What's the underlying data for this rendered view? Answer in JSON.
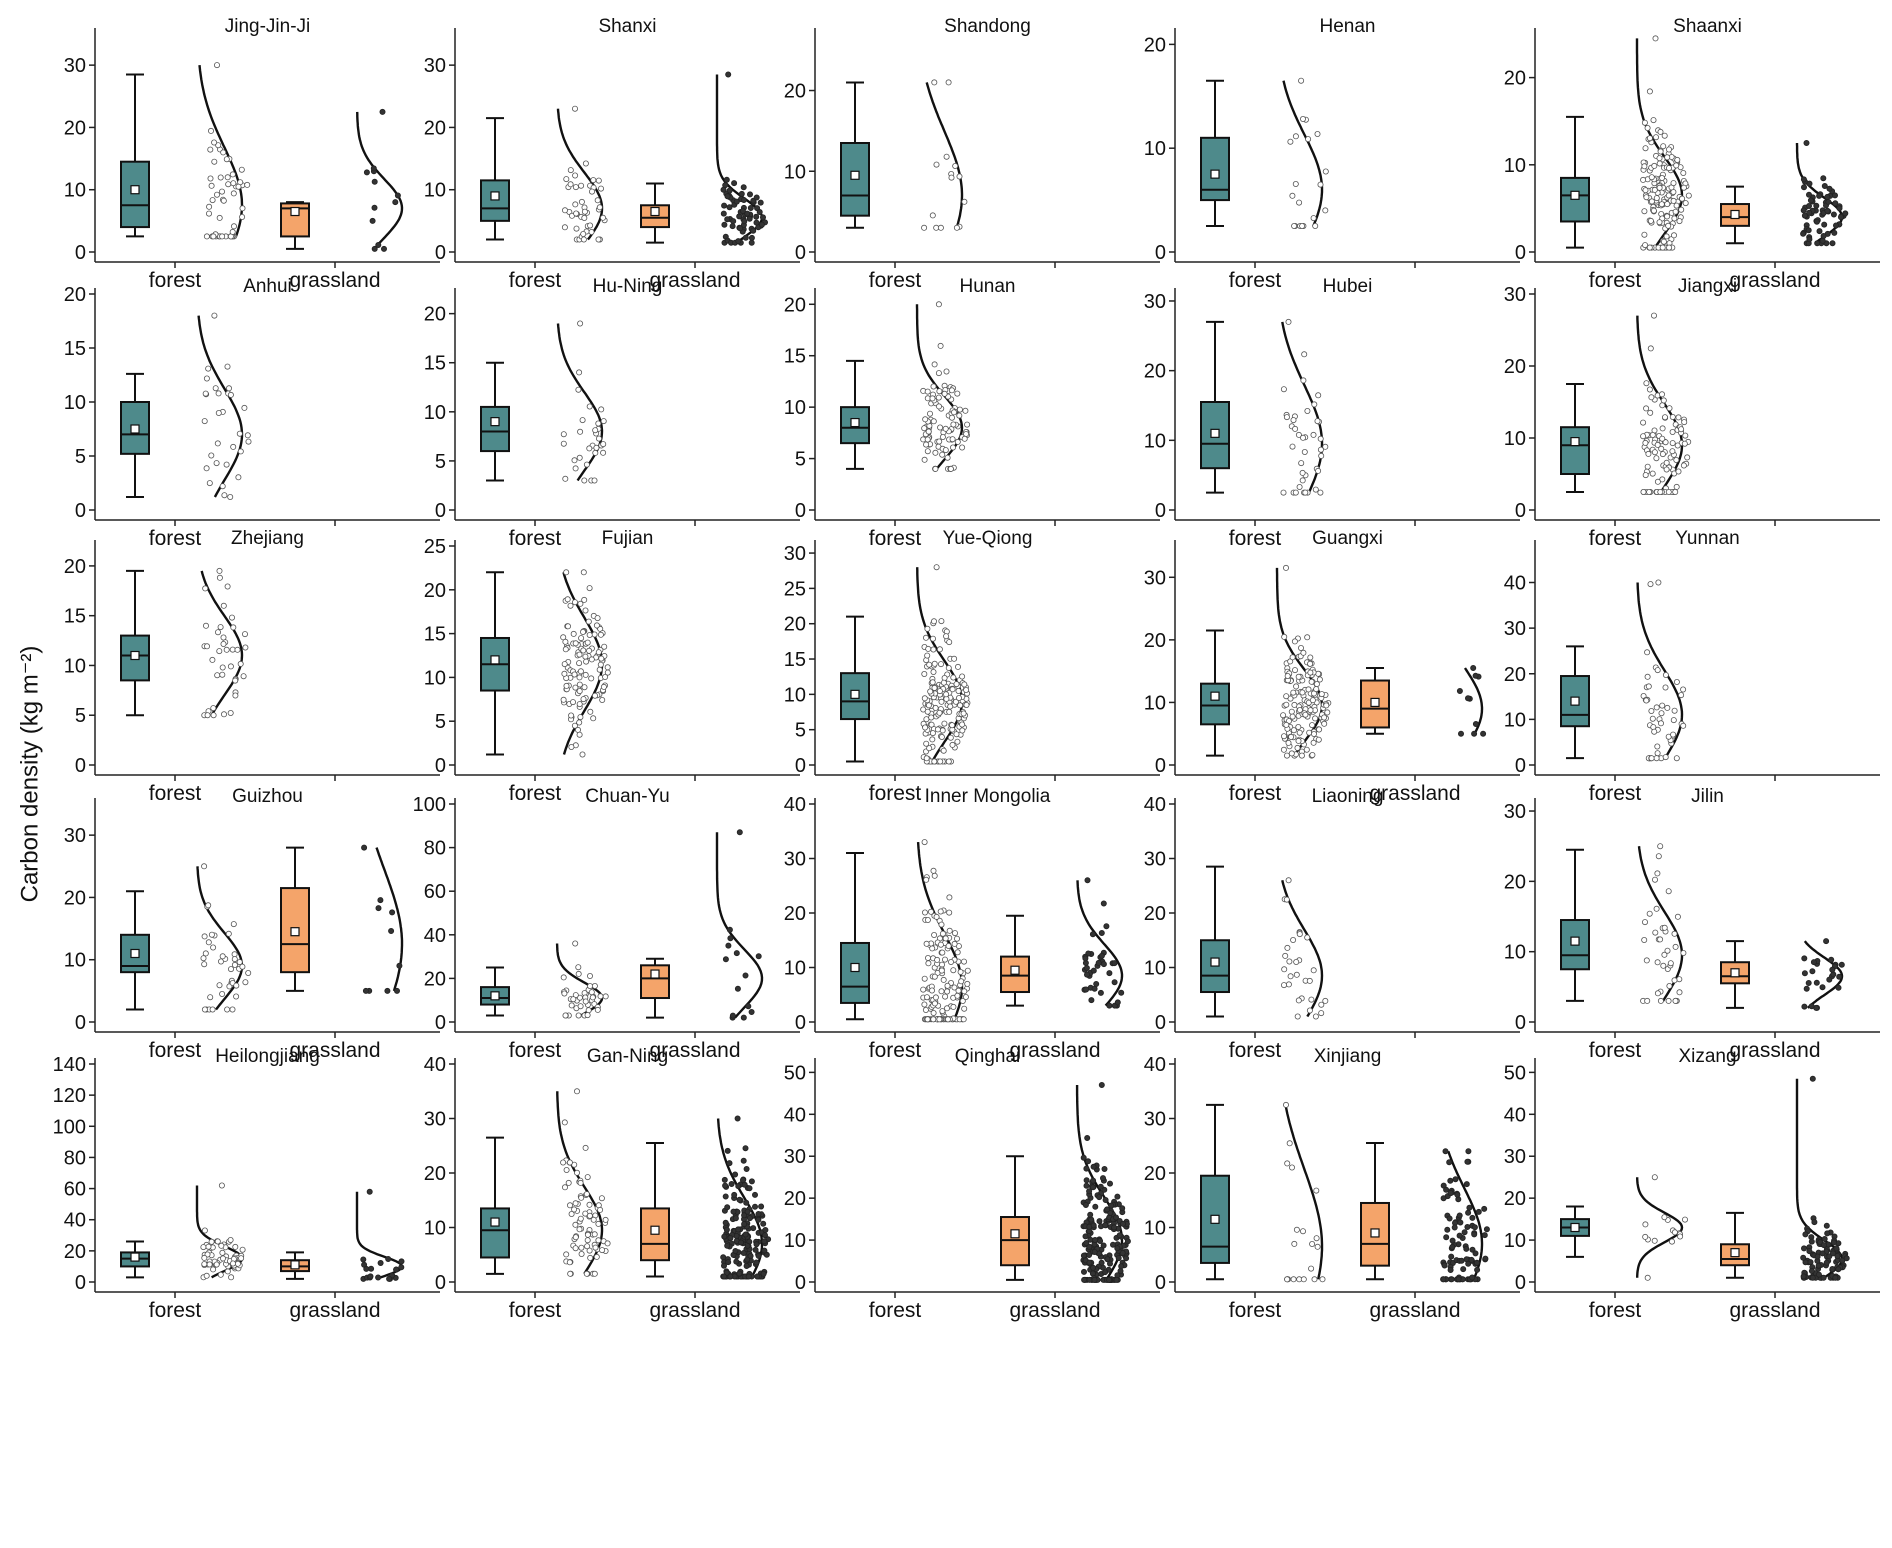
{
  "figure": {
    "ylabel": "Carbon density (kg m⁻²)",
    "colors": {
      "forest": "#4e8a8b",
      "grassland": "#f4a46a",
      "line": "#000000",
      "forest_point": "#ffffff",
      "grassland_point": "#333333"
    }
  },
  "chart_data": [
    {
      "type": "box",
      "title": "Jing-Jin-Ji",
      "ylim": [
        0,
        35
      ],
      "yticks": [
        0,
        10,
        20,
        30
      ],
      "categories": [
        "forest",
        "grassland"
      ],
      "series": [
        {
          "name": "forest",
          "min": 2.5,
          "q1": 4,
          "median": 7.5,
          "q3": 14.5,
          "max": 28.5,
          "mean": 10,
          "n": 50,
          "xn": 2.5,
          "xx": 30
        },
        {
          "name": "grassland",
          "min": 0.5,
          "q1": 2.5,
          "median": 7,
          "q3": 7.8,
          "max": 8,
          "mean": 6.5,
          "n": 12,
          "xn": 0.5,
          "xx": 22.5
        }
      ]
    },
    {
      "type": "box",
      "title": "Shanxi",
      "ylim": [
        0,
        35
      ],
      "yticks": [
        0,
        10,
        20,
        30
      ],
      "categories": [
        "forest",
        "grassland"
      ],
      "series": [
        {
          "name": "forest",
          "min": 2,
          "q1": 5,
          "median": 7,
          "q3": 11.5,
          "max": 21.5,
          "mean": 9,
          "n": 45,
          "xn": 2,
          "xx": 23
        },
        {
          "name": "grassland",
          "min": 1.5,
          "q1": 4,
          "median": 5.5,
          "q3": 7.5,
          "max": 11,
          "mean": 6.5,
          "n": 70,
          "xn": 1.5,
          "xx": 28.5
        }
      ]
    },
    {
      "type": "box",
      "title": "Shandong",
      "ylim": [
        0,
        27
      ],
      "yticks": [
        0,
        10,
        20
      ],
      "categories": [
        "forest"
      ],
      "series": [
        {
          "name": "forest",
          "min": 3,
          "q1": 4.5,
          "median": 7,
          "q3": 13.5,
          "max": 21,
          "mean": 9.5,
          "n": 15,
          "xn": 3,
          "xx": 21
        }
      ]
    },
    {
      "type": "box",
      "title": "Henan",
      "ylim": [
        0,
        21
      ],
      "yticks": [
        0,
        10,
        20
      ],
      "categories": [
        "forest"
      ],
      "series": [
        {
          "name": "forest",
          "min": 2.5,
          "q1": 5,
          "median": 6,
          "q3": 11,
          "max": 16.5,
          "mean": 7.5,
          "n": 20,
          "xn": 2.5,
          "xx": 16.5
        }
      ]
    },
    {
      "type": "box",
      "title": "Shaanxi",
      "ylim": [
        0,
        25
      ],
      "yticks": [
        0,
        10,
        20
      ],
      "categories": [
        "forest",
        "grassland"
      ],
      "series": [
        {
          "name": "forest",
          "min": 0.5,
          "q1": 3.5,
          "median": 6.5,
          "q3": 8.5,
          "max": 15.5,
          "mean": 6.5,
          "n": 160,
          "xn": 0.5,
          "xx": 24.5
        },
        {
          "name": "grassland",
          "min": 1,
          "q1": 3,
          "median": 4,
          "q3": 5.5,
          "max": 7.5,
          "mean": 4.3,
          "n": 70,
          "xn": 1,
          "xx": 12.5
        }
      ]
    },
    {
      "type": "box",
      "title": "Anhui",
      "ylim": [
        0,
        20
      ],
      "yticks": [
        0,
        5,
        10,
        15,
        20
      ],
      "categories": [
        "forest"
      ],
      "series": [
        {
          "name": "forest",
          "min": 1.2,
          "q1": 5.2,
          "median": 7,
          "q3": 10,
          "max": 12.6,
          "mean": 7.5,
          "n": 30,
          "xn": 1.2,
          "xx": 18
        }
      ]
    },
    {
      "type": "box",
      "title": "Hu-Ning",
      "ylim": [
        0,
        22
      ],
      "yticks": [
        0,
        5,
        10,
        15,
        20
      ],
      "categories": [
        "forest"
      ],
      "series": [
        {
          "name": "forest",
          "min": 3,
          "q1": 6,
          "median": 8,
          "q3": 10.5,
          "max": 15,
          "mean": 9,
          "n": 30,
          "xn": 3,
          "xx": 19
        }
      ]
    },
    {
      "type": "box",
      "title": "Hunan",
      "ylim": [
        0,
        21
      ],
      "yticks": [
        0,
        5,
        10,
        15,
        20
      ],
      "categories": [
        "forest"
      ],
      "series": [
        {
          "name": "forest",
          "min": 4,
          "q1": 6.5,
          "median": 8,
          "q3": 10,
          "max": 14.5,
          "mean": 8.5,
          "n": 100,
          "xn": 4,
          "xx": 20
        }
      ]
    },
    {
      "type": "box",
      "title": "Hubei",
      "ylim": [
        0,
        31
      ],
      "yticks": [
        0,
        10,
        20,
        30
      ],
      "categories": [
        "forest"
      ],
      "series": [
        {
          "name": "forest",
          "min": 2.5,
          "q1": 6,
          "median": 9.5,
          "q3": 15.5,
          "max": 27,
          "mean": 11,
          "n": 40,
          "xn": 2.5,
          "xx": 27
        }
      ]
    },
    {
      "type": "box",
      "title": "Jiangxi",
      "ylim": [
        0,
        30
      ],
      "yticks": [
        0,
        10,
        20,
        30
      ],
      "categories": [
        "forest"
      ],
      "series": [
        {
          "name": "forest",
          "min": 2.5,
          "q1": 5,
          "median": 9,
          "q3": 11.5,
          "max": 17.5,
          "mean": 9.5,
          "n": 100,
          "xn": 2.5,
          "xx": 27
        }
      ]
    },
    {
      "type": "box",
      "title": "Zhejiang",
      "ylim": [
        0,
        22
      ],
      "yticks": [
        0,
        5,
        10,
        15,
        20
      ],
      "categories": [
        "forest"
      ],
      "series": [
        {
          "name": "forest",
          "min": 5,
          "q1": 8.5,
          "median": 11,
          "q3": 13,
          "max": 19.5,
          "mean": 11,
          "n": 40,
          "xn": 5,
          "xx": 19.5
        }
      ]
    },
    {
      "type": "box",
      "title": "Fujian",
      "ylim": [
        0,
        25
      ],
      "yticks": [
        0,
        5,
        10,
        15,
        20,
        25
      ],
      "categories": [
        "forest"
      ],
      "series": [
        {
          "name": "forest",
          "min": 1.2,
          "q1": 8.5,
          "median": 11.5,
          "q3": 14.5,
          "max": 22,
          "mean": 12,
          "n": 120,
          "xn": 1.2,
          "xx": 22
        }
      ]
    },
    {
      "type": "box",
      "title": "Yue-Qiong",
      "ylim": [
        0,
        31
      ],
      "yticks": [
        0,
        5,
        10,
        15,
        20,
        25,
        30
      ],
      "categories": [
        "forest"
      ],
      "series": [
        {
          "name": "forest",
          "min": 0.5,
          "q1": 6.5,
          "median": 9,
          "q3": 13,
          "max": 21,
          "mean": 10,
          "n": 180,
          "xn": 0.5,
          "xx": 28
        }
      ]
    },
    {
      "type": "box",
      "title": "Guangxi",
      "ylim": [
        0,
        35
      ],
      "yticks": [
        0,
        10,
        20,
        30
      ],
      "categories": [
        "forest",
        "grassland"
      ],
      "series": [
        {
          "name": "forest",
          "min": 1.5,
          "q1": 6.5,
          "median": 9.5,
          "q3": 13,
          "max": 21.5,
          "mean": 11,
          "n": 160,
          "xn": 1.5,
          "xx": 31.5
        },
        {
          "name": "grassland",
          "min": 5,
          "q1": 6,
          "median": 9,
          "q3": 13.5,
          "max": 15.5,
          "mean": 10,
          "n": 10,
          "xn": 5,
          "xx": 15.5
        }
      ]
    },
    {
      "type": "box",
      "title": "Yunnan",
      "ylim": [
        0,
        48
      ],
      "yticks": [
        0,
        10,
        20,
        30,
        40
      ],
      "categories": [
        "forest"
      ],
      "series": [
        {
          "name": "forest",
          "min": 1.5,
          "q1": 8.5,
          "median": 11,
          "q3": 19.5,
          "max": 26,
          "mean": 14,
          "n": 50,
          "xn": 1.5,
          "xx": 40
        }
      ]
    },
    {
      "type": "box",
      "title": "Guizhou",
      "ylim": [
        0,
        35
      ],
      "yticks": [
        0,
        10,
        20,
        30
      ],
      "categories": [
        "forest",
        "grassland"
      ],
      "series": [
        {
          "name": "forest",
          "min": 2,
          "q1": 8,
          "median": 9,
          "q3": 14,
          "max": 21,
          "mean": 11,
          "n": 40,
          "xn": 2,
          "xx": 25
        },
        {
          "name": "grassland",
          "min": 5,
          "q1": 8,
          "median": 12.5,
          "q3": 21.5,
          "max": 28,
          "mean": 14.5,
          "n": 10,
          "xn": 5,
          "xx": 28
        }
      ]
    },
    {
      "type": "box",
      "title": "Chuan-Yu",
      "ylim": [
        0,
        100
      ],
      "yticks": [
        0,
        20,
        40,
        60,
        80,
        100
      ],
      "categories": [
        "forest",
        "grassland"
      ],
      "series": [
        {
          "name": "forest",
          "min": 3,
          "q1": 8,
          "median": 11,
          "q3": 16,
          "max": 25,
          "mean": 12,
          "n": 40,
          "xn": 3,
          "xx": 36
        },
        {
          "name": "grassland",
          "min": 2,
          "q1": 11,
          "median": 20,
          "q3": 26,
          "max": 29,
          "mean": 22,
          "n": 14,
          "xn": 2,
          "xx": 87
        }
      ]
    },
    {
      "type": "box",
      "title": "Inner Mongolia",
      "ylim": [
        0,
        40
      ],
      "yticks": [
        0,
        10,
        20,
        30,
        40
      ],
      "categories": [
        "forest",
        "grassland"
      ],
      "series": [
        {
          "name": "forest",
          "min": 0.5,
          "q1": 3.5,
          "median": 6.5,
          "q3": 14.5,
          "max": 31,
          "mean": 10,
          "n": 150,
          "xn": 0.5,
          "xx": 33
        },
        {
          "name": "grassland",
          "min": 3,
          "q1": 5.5,
          "median": 8.5,
          "q3": 12,
          "max": 19.5,
          "mean": 9.5,
          "n": 40,
          "xn": 3,
          "xx": 26
        }
      ]
    },
    {
      "type": "box",
      "title": "Liaoning",
      "ylim": [
        0,
        40
      ],
      "yticks": [
        0,
        10,
        20,
        30,
        40
      ],
      "categories": [
        "forest"
      ],
      "series": [
        {
          "name": "forest",
          "min": 1,
          "q1": 5.5,
          "median": 8.5,
          "q3": 15,
          "max": 28.5,
          "mean": 11,
          "n": 30,
          "xn": 1,
          "xx": 26
        }
      ]
    },
    {
      "type": "box",
      "title": "Jilin",
      "ylim": [
        0,
        31
      ],
      "yticks": [
        0,
        10,
        20,
        30
      ],
      "categories": [
        "forest",
        "grassland"
      ],
      "series": [
        {
          "name": "forest",
          "min": 3,
          "q1": 7.5,
          "median": 9.5,
          "q3": 14.5,
          "max": 24.5,
          "mean": 11.5,
          "n": 40,
          "xn": 3,
          "xx": 25
        },
        {
          "name": "grassland",
          "min": 2,
          "q1": 5.5,
          "median": 6.5,
          "q3": 8.5,
          "max": 11.5,
          "mean": 7,
          "n": 25,
          "xn": 2,
          "xx": 11.5
        }
      ]
    },
    {
      "type": "box",
      "title": "Heilongjiang",
      "ylim": [
        0,
        140
      ],
      "yticks": [
        0,
        20,
        40,
        60,
        80,
        100,
        120,
        140
      ],
      "categories": [
        "forest",
        "grassland"
      ],
      "series": [
        {
          "name": "forest",
          "min": 3,
          "q1": 10,
          "median": 15,
          "q3": 19,
          "max": 26,
          "mean": 16,
          "n": 60,
          "xn": 3,
          "xx": 62
        },
        {
          "name": "grassland",
          "min": 2,
          "q1": 7,
          "median": 10,
          "q3": 14,
          "max": 19,
          "mean": 11,
          "n": 20,
          "xn": 2,
          "xx": 58
        }
      ]
    },
    {
      "type": "box",
      "title": "Gan-Ning",
      "ylim": [
        0,
        40
      ],
      "yticks": [
        0,
        10,
        20,
        30,
        40
      ],
      "categories": [
        "forest",
        "grassland"
      ],
      "series": [
        {
          "name": "forest",
          "min": 1.5,
          "q1": 4.5,
          "median": 9.5,
          "q3": 13.5,
          "max": 26.5,
          "mean": 11,
          "n": 80,
          "xn": 1.5,
          "xx": 35
        },
        {
          "name": "grassland",
          "min": 1,
          "q1": 4,
          "median": 7,
          "q3": 13.5,
          "max": 25.5,
          "mean": 9.5,
          "n": 180,
          "xn": 1,
          "xx": 30
        }
      ]
    },
    {
      "type": "box",
      "title": "Qinghai",
      "ylim": [
        0,
        52
      ],
      "yticks": [
        0,
        10,
        20,
        30,
        40,
        50
      ],
      "categories": [
        "forest",
        "grassland"
      ],
      "series": [
        {
          "name": "grassland",
          "min": 0.5,
          "q1": 4,
          "median": 10,
          "q3": 15.5,
          "max": 30,
          "mean": 11.5,
          "n": 200,
          "xn": 0.5,
          "xx": 47
        }
      ]
    },
    {
      "type": "box",
      "title": "Xinjiang",
      "ylim": [
        0,
        40
      ],
      "yticks": [
        0,
        10,
        20,
        30,
        40
      ],
      "categories": [
        "forest",
        "grassland"
      ],
      "series": [
        {
          "name": "forest",
          "min": 0.5,
          "q1": 3.5,
          "median": 6.5,
          "q3": 19.5,
          "max": 32.5,
          "mean": 11.5,
          "n": 20,
          "xn": 0.5,
          "xx": 32.5
        },
        {
          "name": "grassland",
          "min": 0.5,
          "q1": 3,
          "median": 7,
          "q3": 14.5,
          "max": 25.5,
          "mean": 9,
          "n": 100,
          "xn": 0.5,
          "xx": 24
        }
      ]
    },
    {
      "type": "box",
      "title": "Xizang",
      "ylim": [
        0,
        52
      ],
      "yticks": [
        0,
        10,
        20,
        30,
        40,
        50
      ],
      "categories": [
        "forest",
        "grassland"
      ],
      "series": [
        {
          "name": "forest",
          "min": 6,
          "q1": 11,
          "median": 13,
          "q3": 15,
          "max": 18,
          "mean": 13,
          "n": 15,
          "xn": 1,
          "xx": 25
        },
        {
          "name": "grassland",
          "min": 1,
          "q1": 4,
          "median": 5.5,
          "q3": 9,
          "max": 16.5,
          "mean": 7,
          "n": 100,
          "xn": 1,
          "xx": 48.5
        }
      ]
    }
  ]
}
